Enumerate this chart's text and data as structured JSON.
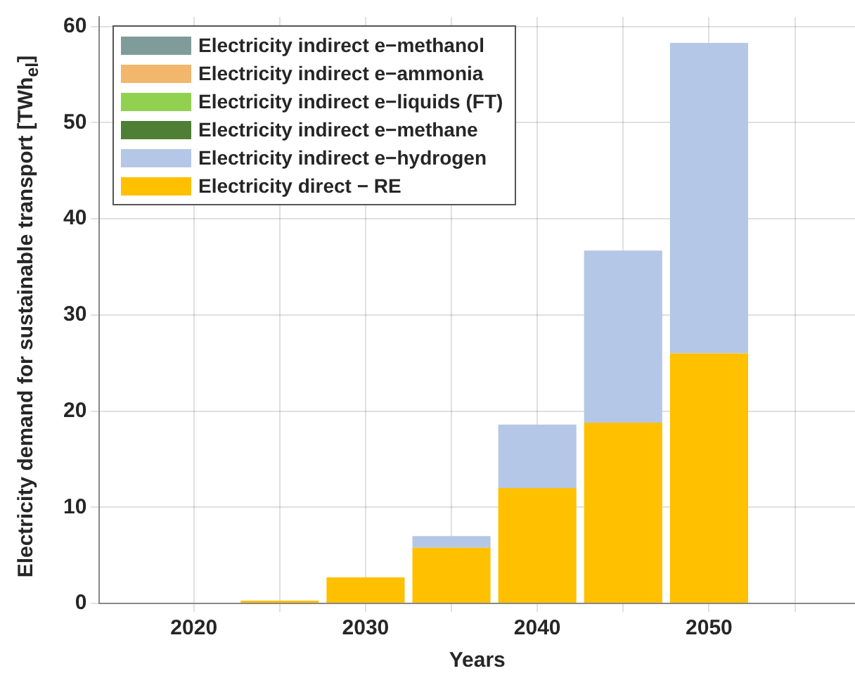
{
  "chart_data": {
    "type": "bar",
    "xlabel": "Years",
    "ylabel": "Electricity demand for sustainable transport [TWh$_{el}$]",
    "x": [
      2020,
      2025,
      2030,
      2035,
      2040,
      2045,
      2050
    ],
    "xlim": [
      2014.5,
      2058.5
    ],
    "xticks": [
      2020,
      {
        "value": 2025,
        "label": null
      },
      2030,
      {
        "value": 2035,
        "label": null
      },
      2040,
      {
        "value": 2045,
        "label": null
      },
      2050,
      {
        "value": 2055,
        "label": null
      }
    ],
    "ylim": [
      0,
      61
    ],
    "yticks": [
      0,
      10,
      20,
      30,
      40,
      50,
      60
    ],
    "stacked": true,
    "grid": true,
    "legend": "top left",
    "series": [
      {
        "name": "Electricity direct − RE",
        "color": "#ffc000",
        "values": [
          0,
          0.3,
          2.7,
          5.8,
          12.0,
          18.8,
          26.0
        ]
      },
      {
        "name": "Electricity indirect e−hydrogen",
        "color": "#b4c7e7",
        "values": [
          0,
          0,
          0,
          1.2,
          6.6,
          17.9,
          32.3
        ]
      },
      {
        "name": "Electricity indirect e−methane",
        "color": "#4f7f34",
        "values": [
          0,
          0,
          0,
          0,
          0,
          0,
          0
        ]
      },
      {
        "name": "Electricity indirect e−liquids (FT)",
        "color": "#92d050",
        "values": [
          0,
          0,
          0,
          0,
          0,
          0,
          0
        ]
      },
      {
        "name": "Electricity indirect e−ammonia",
        "color": "#f2b66d",
        "values": [
          0,
          0,
          0,
          0,
          0,
          0,
          0
        ]
      },
      {
        "name": "Electricity indirect e−methanol",
        "color": "#7f9c9a",
        "values": [
          0,
          0,
          0,
          0,
          0,
          0,
          0
        ]
      }
    ]
  }
}
